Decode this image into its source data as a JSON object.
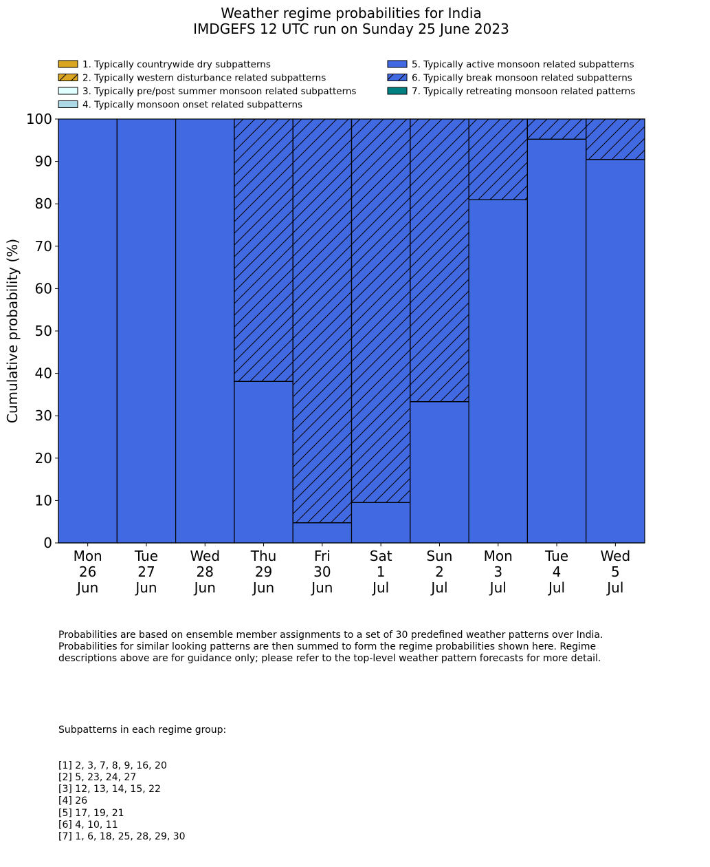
{
  "chart_data": {
    "type": "bar",
    "stacked": true,
    "title": "Weather regime probabilities for India",
    "subtitle": "IMDGEFS 12 UTC run on Sunday 25 June 2023",
    "xlabel": "",
    "ylabel": "Cumulative probability (%)",
    "ylim": [
      0,
      100
    ],
    "yticks": [
      0,
      10,
      20,
      30,
      40,
      50,
      60,
      70,
      80,
      90,
      100
    ],
    "grid": false,
    "legend_position": "top",
    "categories": [
      [
        "Mon",
        "26",
        "Jun"
      ],
      [
        "Tue",
        "27",
        "Jun"
      ],
      [
        "Wed",
        "28",
        "Jun"
      ],
      [
        "Thu",
        "29",
        "Jun"
      ],
      [
        "Fri",
        "30",
        "Jun"
      ],
      [
        "Sat",
        "1",
        "Jul"
      ],
      [
        "Sun",
        "2",
        "Jul"
      ],
      [
        "Mon",
        "3",
        "Jul"
      ],
      [
        "Tue",
        "4",
        "Jul"
      ],
      [
        "Wed",
        "5",
        "Jul"
      ]
    ],
    "series": [
      {
        "name": "1. Typically countrywide dry subpatterns",
        "color": "#DAA520",
        "hatch": false,
        "values": [
          0,
          0,
          0,
          0,
          0,
          0,
          0,
          0,
          0,
          0
        ]
      },
      {
        "name": "2. Typically western disturbance related subpatterns",
        "color": "#DAA520",
        "hatch": true,
        "values": [
          0,
          0,
          0,
          0,
          0,
          0,
          0,
          0,
          0,
          0
        ]
      },
      {
        "name": "3. Typically pre/post summer monsoon related subpatterns",
        "color": "#E0FFFF",
        "hatch": false,
        "values": [
          0,
          0,
          0,
          0,
          0,
          0,
          0,
          0,
          0,
          0
        ]
      },
      {
        "name": "4. Typically monsoon onset related subpatterns",
        "color": "#ADD8E6",
        "hatch": false,
        "values": [
          0,
          0,
          0,
          0,
          0,
          0,
          0,
          0,
          0,
          0
        ]
      },
      {
        "name": "5. Typically active monsoon related subpatterns",
        "color": "#4169E1",
        "hatch": false,
        "values": [
          100,
          100,
          100,
          38.1,
          4.76,
          9.52,
          33.33,
          80.95,
          95.24,
          90.48
        ]
      },
      {
        "name": "6. Typically break monsoon related subpatterns",
        "color": "#4169E1",
        "hatch": true,
        "values": [
          0,
          0,
          0,
          61.9,
          95.24,
          90.48,
          66.67,
          19.05,
          4.76,
          9.52
        ]
      },
      {
        "name": "7. Typically retreating monsoon related patterns",
        "color": "#008080",
        "hatch": false,
        "values": [
          0,
          0,
          0,
          0,
          0,
          0,
          0,
          0,
          0,
          0
        ]
      }
    ]
  },
  "notes": {
    "description": "Probabilities are based on ensemble member assignments to a set of 30 predefined weather patterns over India.\nProbabilities for similar looking patterns are then summed to form the regime probabilities shown here. Regime\ndescriptions above are for guidance only; please refer to the top-level weather pattern forecasts for more detail.",
    "groups_heading": "Subpatterns in each regime group:",
    "groups": [
      "[1] 2, 3, 7, 8, 9, 16, 20",
      "[2] 5, 23, 24, 27",
      "[3] 12, 13, 14, 15, 22",
      "[4] 26",
      "[5] 17, 19, 21",
      "[6] 4, 10, 11",
      "[7] 1, 6, 18, 25, 28, 29, 30"
    ]
  }
}
